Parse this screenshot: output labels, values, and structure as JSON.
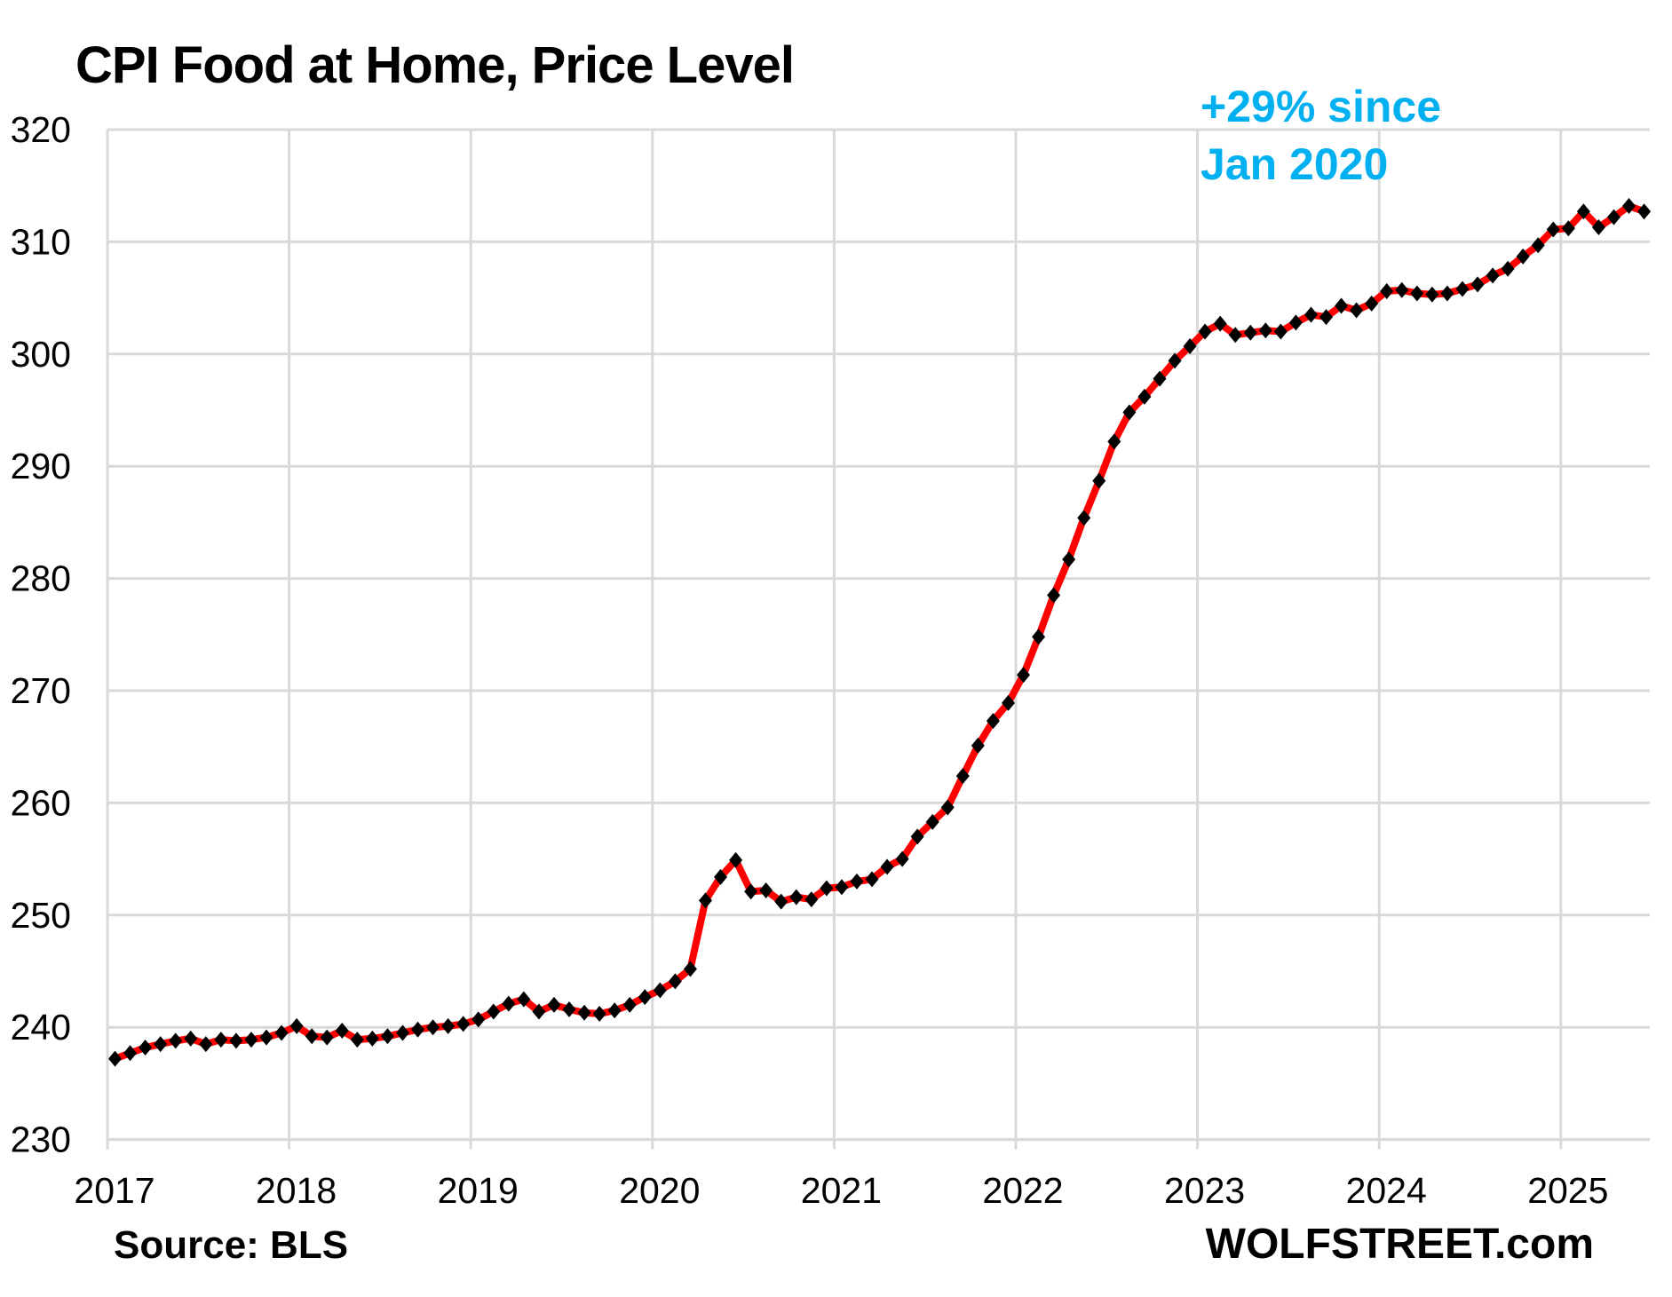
{
  "header": {
    "title": "CPI Food at Home, Price Level"
  },
  "annotation": {
    "line1": "+29% since",
    "line2": "Jan 2020",
    "color": "#00B0F0"
  },
  "footer": {
    "source_note": "Source: BLS",
    "branding": "WOLFSTREET.com"
  },
  "chart_data": {
    "type": "line",
    "title": "CPI Food at Home, Price Level",
    "series_name": "CPI Food at Home price level index",
    "frequency": "monthly",
    "x_start": "2017-01",
    "x_end": "2025-06",
    "x_tick_labels": [
      "2017",
      "2018",
      "2019",
      "2020",
      "2021",
      "2022",
      "2023",
      "2024",
      "2025"
    ],
    "y_ticks": [
      230,
      240,
      250,
      260,
      270,
      280,
      290,
      300,
      310,
      320
    ],
    "ylim": [
      230,
      320
    ],
    "grid": true,
    "legend": "none",
    "line_color": "#FF0000",
    "marker": "diamond",
    "marker_color": "#000000",
    "gridline_color": "#D9D9D9",
    "values": [
      237.2,
      237.7,
      238.2,
      238.5,
      238.8,
      239.0,
      238.5,
      238.9,
      238.8,
      238.9,
      239.1,
      239.5,
      240.1,
      239.2,
      239.1,
      239.7,
      238.9,
      239.0,
      239.2,
      239.5,
      239.8,
      240.0,
      240.1,
      240.3,
      240.7,
      241.4,
      242.1,
      242.5,
      241.4,
      242.0,
      241.6,
      241.3,
      241.2,
      241.5,
      242.0,
      242.7,
      243.3,
      244.1,
      245.2,
      251.3,
      253.4,
      254.9,
      252.1,
      252.2,
      251.2,
      251.6,
      251.4,
      252.4,
      252.5,
      253.0,
      253.2,
      254.3,
      255.0,
      257.0,
      258.3,
      259.6,
      262.4,
      265.1,
      267.3,
      268.9,
      271.4,
      274.8,
      278.5,
      281.7,
      285.4,
      288.7,
      292.2,
      294.8,
      296.2,
      297.8,
      299.4,
      300.7,
      302.0,
      302.7,
      301.7,
      301.9,
      302.1,
      302.0,
      302.8,
      303.5,
      303.3,
      304.3,
      303.9,
      304.5,
      305.6,
      305.7,
      305.4,
      305.3,
      305.4,
      305.8,
      306.2,
      307.0,
      307.6,
      308.7,
      309.7,
      311.1,
      311.2,
      312.7,
      311.3,
      312.2,
      313.2,
      312.7
    ]
  }
}
